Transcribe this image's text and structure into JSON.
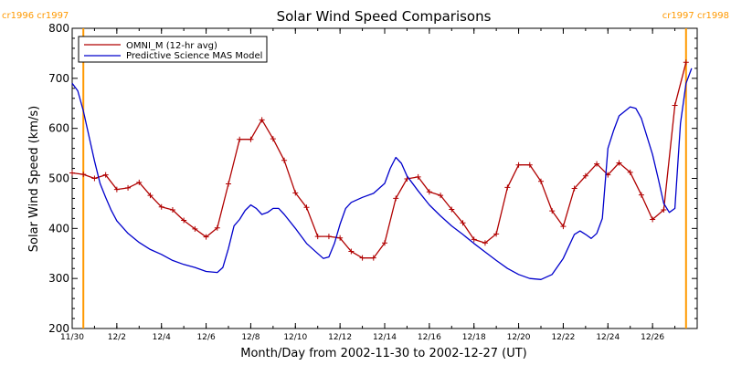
{
  "colors": {
    "omni": "#b00000",
    "model": "#0000cc",
    "rotation": "#ff9900",
    "axis": "#000000"
  },
  "chart_data": {
    "type": "line",
    "title": "Solar Wind Speed Comparisons",
    "xlabel": "Month/Day from 2002-11-30 to 2002-12-27 (UT)",
    "ylabel": "Solar Wind Speed (km/s)",
    "xlim": [
      "2002-11-30T00:00",
      "2002-12-28T00:00"
    ],
    "ylim": [
      200,
      800
    ],
    "xticks": [
      {
        "date": "2002-11-30",
        "label": "11/30"
      },
      {
        "date": "2002-12-02",
        "label": "12/2"
      },
      {
        "date": "2002-12-04",
        "label": "12/4"
      },
      {
        "date": "2002-12-06",
        "label": "12/6"
      },
      {
        "date": "2002-12-08",
        "label": "12/8"
      },
      {
        "date": "2002-12-10",
        "label": "12/10"
      },
      {
        "date": "2002-12-12",
        "label": "12/12"
      },
      {
        "date": "2002-12-14",
        "label": "12/14"
      },
      {
        "date": "2002-12-16",
        "label": "12/16"
      },
      {
        "date": "2002-12-18",
        "label": "12/18"
      },
      {
        "date": "2002-12-20",
        "label": "12/20"
      },
      {
        "date": "2002-12-22",
        "label": "12/22"
      },
      {
        "date": "2002-12-24",
        "label": "12/24"
      },
      {
        "date": "2002-12-26",
        "label": "12/26"
      }
    ],
    "yticks": [
      200,
      300,
      400,
      500,
      600,
      700,
      800
    ],
    "grid": false,
    "legend_position": "top-left",
    "rotation_markers": [
      {
        "date": "2002-11-30T12:00",
        "left_label": "cr1996",
        "right_label": "cr1997",
        "label_side": "top-left"
      },
      {
        "date": "2002-12-27T12:00",
        "left_label": "cr1997",
        "right_label": "cr1998",
        "label_side": "top-right"
      }
    ],
    "series": [
      {
        "name": "OMNI_M (12-hr avg)",
        "color": "#b00000",
        "markers": "plus",
        "points": [
          [
            "2002-11-30T00:00",
            511
          ],
          [
            "2002-11-30T12:00",
            508
          ],
          [
            "2002-12-01T00:00",
            500
          ],
          [
            "2002-12-01T12:00",
            507
          ],
          [
            "2002-12-02T00:00",
            478
          ],
          [
            "2002-12-02T12:00",
            481
          ],
          [
            "2002-12-03T00:00",
            492
          ],
          [
            "2002-12-03T12:00",
            466
          ],
          [
            "2002-12-04T00:00",
            443
          ],
          [
            "2002-12-04T12:00",
            437
          ],
          [
            "2002-12-05T00:00",
            416
          ],
          [
            "2002-12-05T12:00",
            399
          ],
          [
            "2002-12-06T00:00",
            383
          ],
          [
            "2002-12-06T12:00",
            401
          ],
          [
            "2002-12-07T00:00",
            489
          ],
          [
            "2002-12-07T12:00",
            578
          ],
          [
            "2002-12-08T00:00",
            578
          ],
          [
            "2002-12-08T12:00",
            617
          ],
          [
            "2002-12-09T00:00",
            579
          ],
          [
            "2002-12-09T12:00",
            536
          ],
          [
            "2002-12-10T00:00",
            471
          ],
          [
            "2002-12-10T12:00",
            442
          ],
          [
            "2002-12-11T00:00",
            384
          ],
          [
            "2002-12-11T12:00",
            384
          ],
          [
            "2002-12-12T00:00",
            381
          ],
          [
            "2002-12-12T12:00",
            354
          ],
          [
            "2002-12-13T00:00",
            341
          ],
          [
            "2002-12-13T12:00",
            341
          ],
          [
            "2002-12-14T00:00",
            371
          ],
          [
            "2002-12-14T12:00",
            460
          ],
          [
            "2002-12-15T00:00",
            499
          ],
          [
            "2002-12-15T12:00",
            503
          ],
          [
            "2002-12-16T00:00",
            473
          ],
          [
            "2002-12-16T12:00",
            466
          ],
          [
            "2002-12-17T00:00",
            438
          ],
          [
            "2002-12-17T12:00",
            411
          ],
          [
            "2002-12-18T00:00",
            378
          ],
          [
            "2002-12-18T12:00",
            371
          ],
          [
            "2002-12-19T00:00",
            389
          ],
          [
            "2002-12-19T12:00",
            482
          ],
          [
            "2002-12-20T00:00",
            527
          ],
          [
            "2002-12-20T12:00",
            527
          ],
          [
            "2002-12-21T00:00",
            494
          ],
          [
            "2002-12-21T12:00",
            435
          ],
          [
            "2002-12-22T00:00",
            404
          ],
          [
            "2002-12-22T12:00",
            480
          ],
          [
            "2002-12-23T00:00",
            505
          ],
          [
            "2002-12-23T12:00",
            529
          ],
          [
            "2002-12-24T00:00",
            507
          ],
          [
            "2002-12-24T12:00",
            531
          ],
          [
            "2002-12-25T00:00",
            512
          ],
          [
            "2002-12-25T12:00",
            467
          ],
          [
            "2002-12-26T00:00",
            418
          ],
          [
            "2002-12-26T12:00",
            437
          ],
          [
            "2002-12-27T00:00",
            646
          ],
          [
            "2002-12-27T12:00",
            732
          ]
        ]
      },
      {
        "name": "Predictive Science MAS Model",
        "color": "#0000cc",
        "markers": "none",
        "points": [
          [
            "2002-11-30T00:00",
            690
          ],
          [
            "2002-11-30T06:00",
            675
          ],
          [
            "2002-11-30T12:00",
            635
          ],
          [
            "2002-11-30T18:00",
            585
          ],
          [
            "2002-12-01T00:00",
            535
          ],
          [
            "2002-12-01T06:00",
            490
          ],
          [
            "2002-12-01T12:00",
            462
          ],
          [
            "2002-12-01T18:00",
            436
          ],
          [
            "2002-12-02T00:00",
            415
          ],
          [
            "2002-12-02T12:00",
            390
          ],
          [
            "2002-12-03T00:00",
            372
          ],
          [
            "2002-12-03T12:00",
            358
          ],
          [
            "2002-12-04T00:00",
            348
          ],
          [
            "2002-12-04T12:00",
            336
          ],
          [
            "2002-12-05T00:00",
            328
          ],
          [
            "2002-12-05T12:00",
            322
          ],
          [
            "2002-12-06T00:00",
            314
          ],
          [
            "2002-12-06T12:00",
            312
          ],
          [
            "2002-12-06T18:00",
            322
          ],
          [
            "2002-12-07T00:00",
            360
          ],
          [
            "2002-12-07T06:00",
            405
          ],
          [
            "2002-12-07T12:00",
            418
          ],
          [
            "2002-12-07T18:00",
            436
          ],
          [
            "2002-12-08T00:00",
            447
          ],
          [
            "2002-12-08T06:00",
            440
          ],
          [
            "2002-12-08T12:00",
            428
          ],
          [
            "2002-12-08T18:00",
            432
          ],
          [
            "2002-12-09T00:00",
            440
          ],
          [
            "2002-12-09T06:00",
            440
          ],
          [
            "2002-12-09T12:00",
            428
          ],
          [
            "2002-12-10T00:00",
            400
          ],
          [
            "2002-12-10T12:00",
            370
          ],
          [
            "2002-12-11T00:00",
            350
          ],
          [
            "2002-12-11T06:00",
            340
          ],
          [
            "2002-12-11T12:00",
            343
          ],
          [
            "2002-12-11T18:00",
            370
          ],
          [
            "2002-12-12T00:00",
            408
          ],
          [
            "2002-12-12T06:00",
            440
          ],
          [
            "2002-12-12T12:00",
            452
          ],
          [
            "2002-12-13T00:00",
            462
          ],
          [
            "2002-12-13T12:00",
            470
          ],
          [
            "2002-12-14T00:00",
            490
          ],
          [
            "2002-12-14T06:00",
            520
          ],
          [
            "2002-12-14T12:00",
            542
          ],
          [
            "2002-12-14T18:00",
            530
          ],
          [
            "2002-12-15T00:00",
            505
          ],
          [
            "2002-12-15T12:00",
            475
          ],
          [
            "2002-12-16T00:00",
            447
          ],
          [
            "2002-12-16T12:00",
            425
          ],
          [
            "2002-12-17T00:00",
            405
          ],
          [
            "2002-12-17T12:00",
            388
          ],
          [
            "2002-12-18T00:00",
            370
          ],
          [
            "2002-12-18T12:00",
            353
          ],
          [
            "2002-12-19T00:00",
            336
          ],
          [
            "2002-12-19T12:00",
            320
          ],
          [
            "2002-12-20T00:00",
            308
          ],
          [
            "2002-12-20T12:00",
            300
          ],
          [
            "2002-12-21T00:00",
            298
          ],
          [
            "2002-12-21T12:00",
            308
          ],
          [
            "2002-12-22T00:00",
            340
          ],
          [
            "2002-12-22T12:00",
            388
          ],
          [
            "2002-12-22T18:00",
            395
          ],
          [
            "2002-12-23T00:00",
            388
          ],
          [
            "2002-12-23T06:00",
            380
          ],
          [
            "2002-12-23T12:00",
            390
          ],
          [
            "2002-12-23T18:00",
            420
          ],
          [
            "2002-12-24T00:00",
            560
          ],
          [
            "2002-12-24T06:00",
            595
          ],
          [
            "2002-12-24T12:00",
            625
          ],
          [
            "2002-12-25T00:00",
            643
          ],
          [
            "2002-12-25T06:00",
            640
          ],
          [
            "2002-12-25T12:00",
            620
          ],
          [
            "2002-12-26T00:00",
            548
          ],
          [
            "2002-12-26T06:00",
            500
          ],
          [
            "2002-12-26T12:00",
            450
          ],
          [
            "2002-12-26T18:00",
            432
          ],
          [
            "2002-12-27T00:00",
            440
          ],
          [
            "2002-12-27T06:00",
            610
          ],
          [
            "2002-12-27T12:00",
            690
          ],
          [
            "2002-12-27T18:00",
            720
          ]
        ]
      }
    ]
  }
}
